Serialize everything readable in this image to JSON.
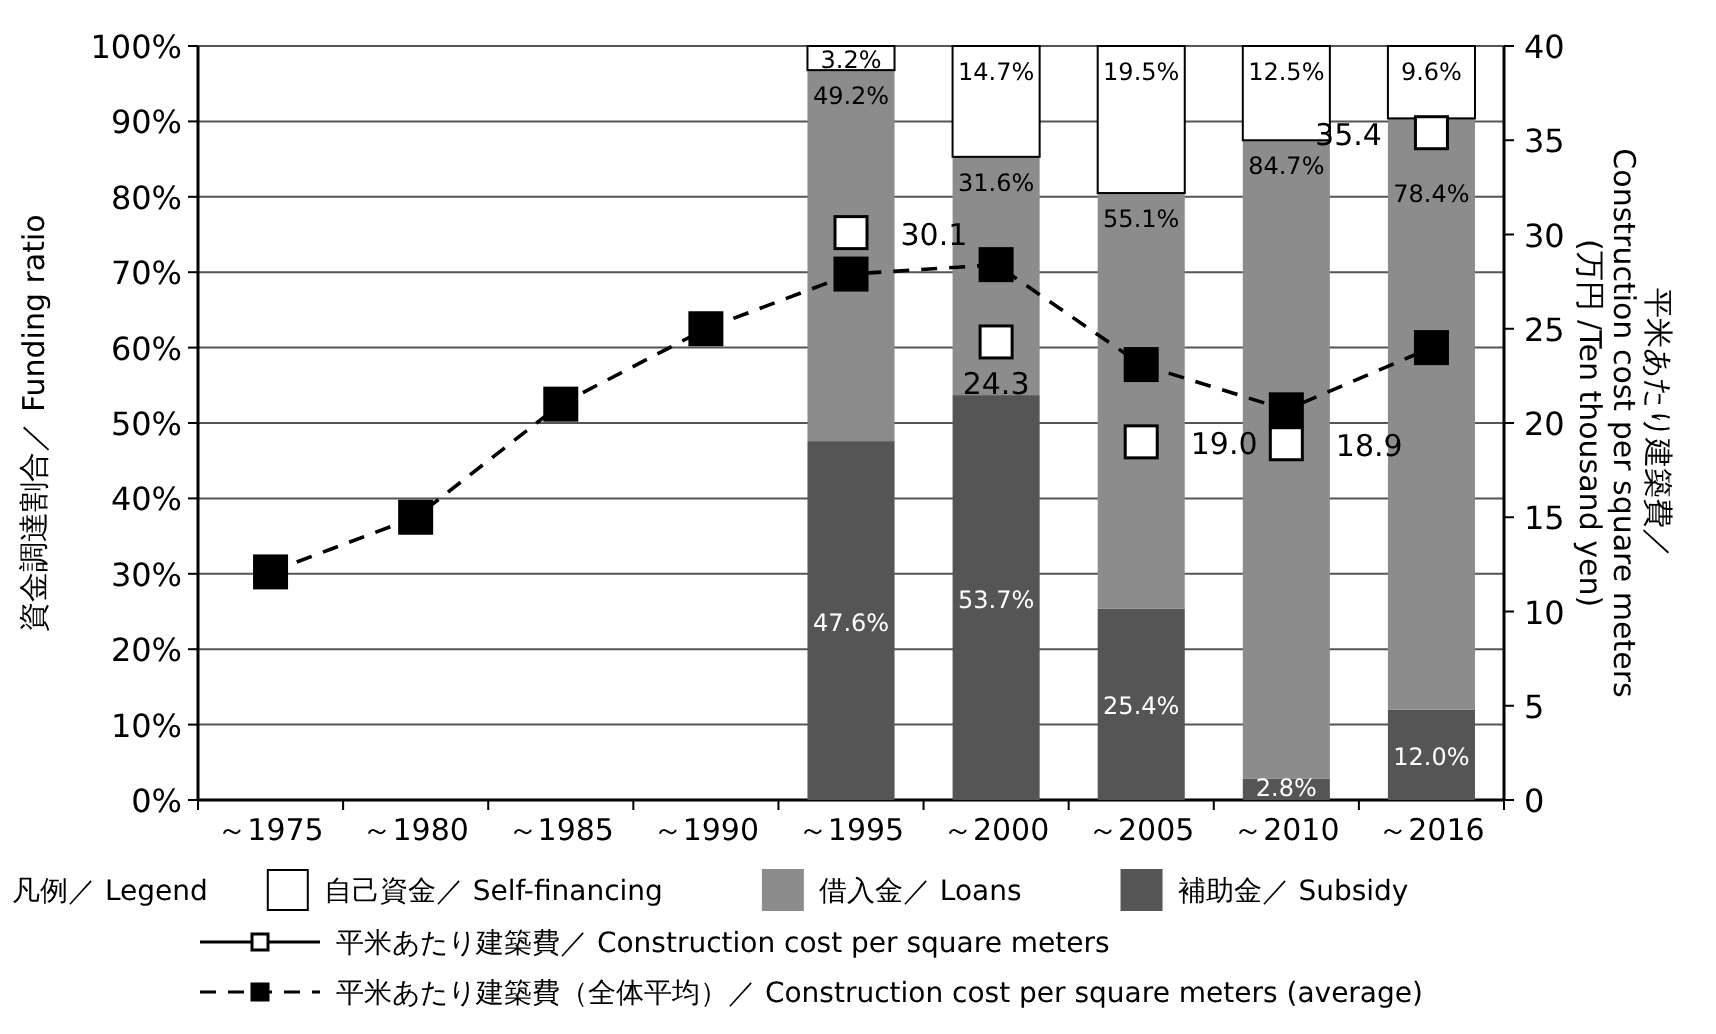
{
  "chart_data": {
    "type": "bar",
    "stacked": true,
    "legend_title": "凡例／ Legend",
    "ylabel": "資金調達割合／ Funding ratio",
    "y2label": "平米あたり建築費／\nConstruction cost per square meters\n(万円 /Ten thousand yen)",
    "categories": [
      "～1975",
      "～1980",
      "～1985",
      "～1990",
      "～1995",
      "～2000",
      "～2005",
      "～2010",
      "～2016"
    ],
    "ylim": [
      0,
      100
    ],
    "yticks": [
      {
        "value": 0,
        "label": "0%"
      },
      {
        "value": 10,
        "label": "10%"
      },
      {
        "value": 20,
        "label": "20%"
      },
      {
        "value": 30,
        "label": "30%"
      },
      {
        "value": 40,
        "label": "40%"
      },
      {
        "value": 50,
        "label": "50%"
      },
      {
        "value": 60,
        "label": "60%"
      },
      {
        "value": 70,
        "label": "70%"
      },
      {
        "value": 80,
        "label": "80%"
      },
      {
        "value": 90,
        "label": "90%"
      },
      {
        "value": 100,
        "label": "100%"
      }
    ],
    "y2lim": [
      0,
      40
    ],
    "y2ticks": [
      0,
      5,
      10,
      15,
      20,
      25,
      30,
      35,
      40
    ],
    "grid": "y",
    "legend": "bottom",
    "series": [
      {
        "name": "補助金／ Subsidy",
        "color": "#555555",
        "values": [
          null,
          null,
          null,
          null,
          47.6,
          53.7,
          25.4,
          2.8,
          12.0
        ],
        "value_labels": [
          null,
          null,
          null,
          null,
          "47.6%",
          "53.7%",
          "25.4%",
          "2.8%",
          "12.0%"
        ]
      },
      {
        "name": "借入金／ Loans",
        "color": "#8c8c8c",
        "values": [
          null,
          null,
          null,
          null,
          49.2,
          31.6,
          55.1,
          84.7,
          78.4
        ],
        "value_labels": [
          null,
          null,
          null,
          null,
          "49.2%",
          "31.6%",
          "55.1%",
          "84.7%",
          "78.4%"
        ]
      },
      {
        "name": "自己資金／ Self-financing",
        "color": "#ffffff",
        "values": [
          null,
          null,
          null,
          null,
          3.2,
          14.7,
          19.5,
          12.5,
          9.6
        ],
        "value_labels": [
          null,
          null,
          null,
          null,
          "3.2%",
          "14.7%",
          "19.5%",
          "12.5%",
          "9.6%"
        ]
      },
      {
        "name": "平米あたり建築費／ Construction cost per square meters",
        "type": "scatter",
        "axis": "y2",
        "marker": "square",
        "color": "#ffffff",
        "values": [
          null,
          null,
          null,
          null,
          30.1,
          24.3,
          19.0,
          18.9,
          35.4
        ],
        "value_labels": [
          null,
          null,
          null,
          null,
          "30.1",
          "24.3",
          "19.0",
          "18.9",
          "35.4"
        ]
      },
      {
        "name": "平米あたり建築費（全体平均）／ Construction cost per square meters (average)",
        "type": "line",
        "axis": "y2",
        "marker": "square",
        "line_style": "dashed",
        "color": "#000000",
        "values": [
          12.1,
          15.0,
          21.0,
          25.0,
          27.9,
          28.4,
          23.1,
          20.7,
          24.0
        ]
      }
    ]
  }
}
